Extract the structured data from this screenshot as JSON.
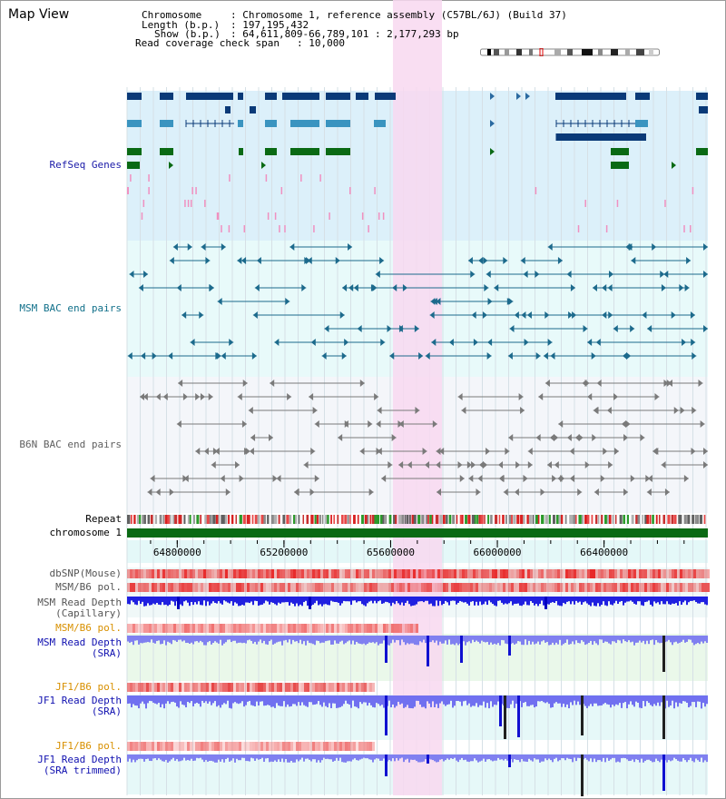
{
  "view_title": "Map View",
  "header": {
    "chromosome_label": "Chromosome",
    "chromosome_value": ": Chromosome 1, reference assembly (C57BL/6J) (Build 37)",
    "length_label": "Length (b.p.)",
    "length_value": ": 197,195,432",
    "show_label": "Show (b.p.)",
    "show_value": ": 64,611,809-66,789,101 : 2,177,293 bp",
    "coverage_label": "Read coverage check span",
    "coverage_value": ": 10,000"
  },
  "tracks": {
    "refseq": "RefSeq Genes",
    "msm_bac": "MSM BAC end pairs",
    "b6n_bac": "B6N BAC end pairs",
    "repeat": "Repeat",
    "chromosome": "chromosome 1",
    "dbsnp": "dbSNP(Mouse)",
    "msm_b6_pol_1": "MSM/B6 pol.",
    "msm_depth_cap_1": "MSM Read Depth",
    "msm_depth_cap_2": "(Capillary)",
    "msm_b6_pol_2": "MSM/B6 pol.",
    "msm_depth_sra_1": "MSM Read Depth",
    "msm_depth_sra_2": "(SRA)",
    "jf1_b6_pol_1": "JF1/B6 pol.",
    "jf1_depth_sra_1": "JF1 Read Depth",
    "jf1_depth_sra_2": "(SRA)",
    "jf1_b6_pol_2": "JF1/B6 pol.",
    "jf1_depth_trim_1": "JF1 Read Depth",
    "jf1_depth_trim_2": "(SRA trimmed)"
  },
  "axis": {
    "ticks": [
      "64800000",
      "65200000",
      "65600000",
      "66000000",
      "66400000"
    ],
    "tick_values": [
      64800000,
      65200000,
      65600000,
      66000000,
      66400000
    ]
  },
  "colors": {
    "refseq_label": "#1a1aa8",
    "msm_label": "#11708a",
    "b6n_label": "#606060",
    "orange_label": "#d89000",
    "blue_label": "#1010b0",
    "highlight": "#f8d8f0",
    "refseq_bg": "#dcf0fa",
    "bac_bg": "#e8fafa",
    "b6n_bg": "#f4f6fa"
  }
}
